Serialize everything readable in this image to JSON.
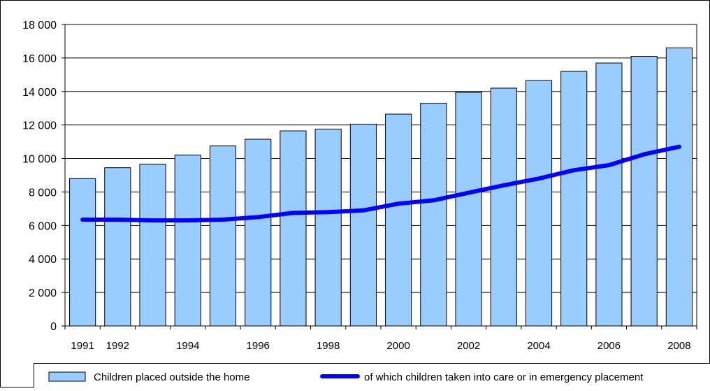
{
  "chart_data": {
    "type": "bar",
    "title": "",
    "xlabel": "",
    "ylabel": "",
    "ylim": [
      0,
      18000
    ],
    "yticks": [
      "0",
      "2 000",
      "4 000",
      "6 000",
      "8 000",
      "10 000",
      "12 000",
      "14 000",
      "16 000",
      "18 000"
    ],
    "ytick_values": [
      0,
      2000,
      4000,
      6000,
      8000,
      10000,
      12000,
      14000,
      16000,
      18000
    ],
    "categories": [
      "1991",
      "1992",
      "1993",
      "1994",
      "1995",
      "1996",
      "1997",
      "1998",
      "1999",
      "2000",
      "2001",
      "2002",
      "2003",
      "2004",
      "2005",
      "2006",
      "2007",
      "2008"
    ],
    "x_tick_labels": [
      "1991",
      "1992",
      "",
      "1994",
      "",
      "1996",
      "",
      "1998",
      "",
      "2000",
      "",
      "2002",
      "",
      "2004",
      "",
      "2006",
      "",
      "2008"
    ],
    "grid": true,
    "legend_position": "bottom",
    "series": [
      {
        "name": "Children placed outside the home",
        "kind": "bar",
        "color": "#99ccff",
        "values": [
          8800,
          9450,
          9650,
          10200,
          10750,
          11150,
          11650,
          11750,
          12050,
          12650,
          13300,
          13950,
          14200,
          14650,
          15200,
          15700,
          16100,
          16600
        ]
      },
      {
        "name": "of which children taken into care or in emergency placement",
        "kind": "line",
        "color": "#0000ff",
        "values": [
          6350,
          6350,
          6300,
          6300,
          6350,
          6500,
          6750,
          6800,
          6900,
          7300,
          7500,
          7950,
          8400,
          8800,
          9300,
          9600,
          10250,
          10700
        ]
      }
    ]
  }
}
